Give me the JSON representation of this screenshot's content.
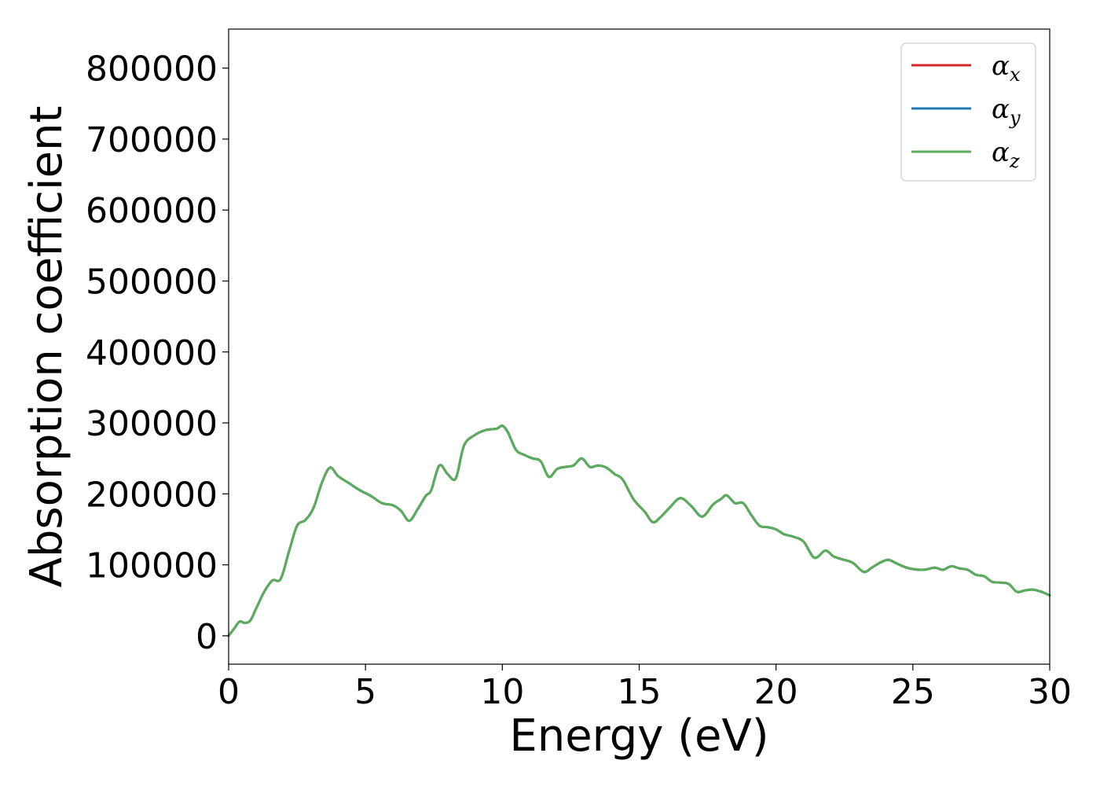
{
  "chart_data": {
    "type": "line",
    "xlabel": "Energy (eV)",
    "ylabel": "Absorption coefficient",
    "xlim": [
      0,
      30
    ],
    "ylim": [
      -40000,
      855000
    ],
    "xticks": [
      0,
      5,
      10,
      15,
      20,
      25,
      30
    ],
    "xtick_labels": [
      "0",
      "5",
      "10",
      "15",
      "20",
      "25",
      "30"
    ],
    "yticks": [
      0,
      100000,
      200000,
      300000,
      400000,
      500000,
      600000,
      700000,
      800000
    ],
    "ytick_labels": [
      "0",
      "100000",
      "200000",
      "300000",
      "400000",
      "500000",
      "600000",
      "700000",
      "800000"
    ],
    "grid": false,
    "legend_position": "top-right",
    "x": [
      0,
      0.2,
      0.4,
      0.6,
      0.8,
      1.0,
      1.3,
      1.6,
      1.9,
      2.2,
      2.5,
      2.8,
      3.1,
      3.4,
      3.7,
      4.0,
      4.4,
      4.8,
      5.2,
      5.6,
      6.0,
      6.3,
      6.6,
      6.9,
      7.2,
      7.4,
      7.7,
      8.0,
      8.3,
      8.6,
      9.0,
      9.4,
      9.8,
      10.0,
      10.2,
      10.5,
      10.8,
      11.1,
      11.4,
      11.7,
      12.0,
      12.3,
      12.6,
      12.9,
      13.2,
      13.5,
      13.8,
      14.1,
      14.4,
      14.8,
      15.2,
      15.5,
      15.8,
      16.1,
      16.5,
      16.9,
      17.3,
      17.7,
      18.0,
      18.2,
      18.5,
      18.8,
      19.1,
      19.4,
      19.7,
      20.0,
      20.3,
      20.6,
      21.0,
      21.4,
      21.8,
      22.1,
      22.4,
      22.8,
      23.2,
      23.5,
      23.8,
      24.1,
      24.4,
      24.7,
      25.0,
      25.4,
      25.8,
      26.1,
      26.4,
      26.7,
      27.0,
      27.3,
      27.6,
      27.9,
      28.2,
      28.5,
      28.8,
      29.1,
      29.4,
      29.7,
      30.0
    ],
    "series": [
      {
        "name": "α_x",
        "color": "#d62728",
        "values": [
          0,
          10000,
          20000,
          18000,
          22000,
          38000,
          62000,
          78000,
          80000,
          118000,
          155000,
          163000,
          180000,
          215000,
          237000,
          225000,
          215000,
          205000,
          197000,
          187000,
          184000,
          176000,
          162000,
          178000,
          197000,
          205000,
          240000,
          228000,
          222000,
          268000,
          283000,
          290000,
          292000,
          296000,
          287000,
          262000,
          255000,
          250000,
          246000,
          224000,
          235000,
          238000,
          240000,
          250000,
          238000,
          240000,
          237000,
          228000,
          220000,
          192000,
          175000,
          160000,
          168000,
          180000,
          194000,
          183000,
          168000,
          185000,
          193000,
          198000,
          187000,
          187000,
          170000,
          155000,
          153000,
          150000,
          143000,
          140000,
          133000,
          110000,
          120000,
          112000,
          108000,
          103000,
          90000,
          96000,
          103000,
          107000,
          102000,
          97000,
          94000,
          93000,
          96000,
          93000,
          98000,
          95000,
          93000,
          86000,
          84000,
          76000,
          75000,
          73000,
          62000,
          64000,
          65000,
          62000,
          57000
        ]
      },
      {
        "name": "α_y",
        "color": "#1f77b4",
        "values": [
          0,
          10000,
          20000,
          18000,
          22000,
          38000,
          62000,
          78000,
          80000,
          118000,
          155000,
          163000,
          180000,
          215000,
          237000,
          225000,
          215000,
          205000,
          197000,
          187000,
          184000,
          176000,
          162000,
          178000,
          197000,
          205000,
          240000,
          228000,
          222000,
          268000,
          283000,
          290000,
          292000,
          296000,
          287000,
          262000,
          255000,
          250000,
          246000,
          224000,
          235000,
          238000,
          240000,
          250000,
          238000,
          240000,
          237000,
          228000,
          220000,
          192000,
          175000,
          160000,
          168000,
          180000,
          194000,
          183000,
          168000,
          185000,
          193000,
          198000,
          187000,
          187000,
          170000,
          155000,
          153000,
          150000,
          143000,
          140000,
          133000,
          110000,
          120000,
          112000,
          108000,
          103000,
          90000,
          96000,
          103000,
          107000,
          102000,
          97000,
          94000,
          93000,
          96000,
          93000,
          98000,
          95000,
          93000,
          86000,
          84000,
          76000,
          75000,
          73000,
          62000,
          64000,
          65000,
          62000,
          57000
        ]
      },
      {
        "name": "α_z",
        "color": "#5aad5a",
        "values": [
          0,
          10000,
          20000,
          18000,
          22000,
          38000,
          62000,
          78000,
          80000,
          118000,
          155000,
          163000,
          180000,
          215000,
          237000,
          225000,
          215000,
          205000,
          197000,
          187000,
          184000,
          176000,
          162000,
          178000,
          197000,
          205000,
          240000,
          228000,
          222000,
          268000,
          283000,
          290000,
          292000,
          296000,
          287000,
          262000,
          255000,
          250000,
          246000,
          224000,
          235000,
          238000,
          240000,
          250000,
          238000,
          240000,
          237000,
          228000,
          220000,
          192000,
          175000,
          160000,
          168000,
          180000,
          194000,
          183000,
          168000,
          185000,
          193000,
          198000,
          187000,
          187000,
          170000,
          155000,
          153000,
          150000,
          143000,
          140000,
          133000,
          110000,
          120000,
          112000,
          108000,
          103000,
          90000,
          96000,
          103000,
          107000,
          102000,
          97000,
          94000,
          93000,
          96000,
          93000,
          98000,
          95000,
          93000,
          86000,
          84000,
          76000,
          75000,
          73000,
          62000,
          64000,
          65000,
          62000,
          57000
        ]
      }
    ],
    "legend": [
      {
        "base": "α",
        "sub": "x",
        "color": "#d62728"
      },
      {
        "base": "α",
        "sub": "y",
        "color": "#1f77b4"
      },
      {
        "base": "α",
        "sub": "z",
        "color": "#5aad5a"
      }
    ]
  }
}
